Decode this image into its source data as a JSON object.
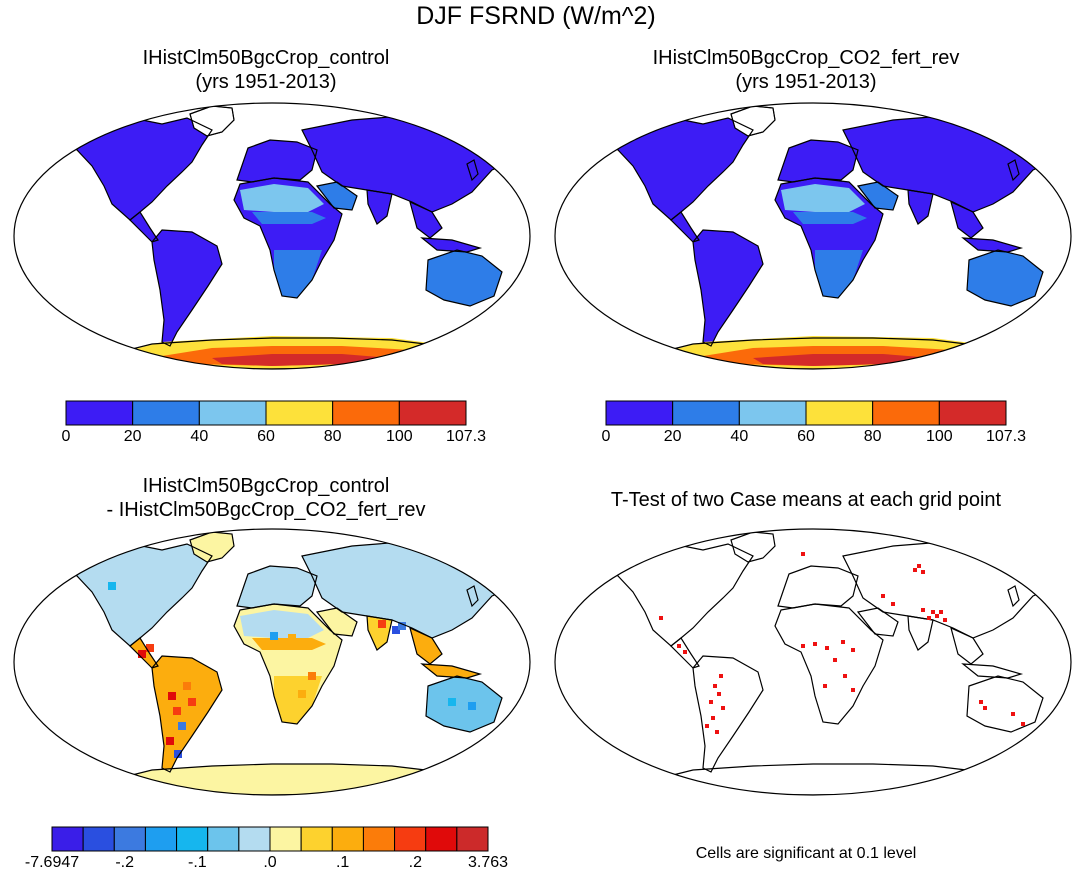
{
  "main_title": "DJF FSRND (W/m^2)",
  "panels": [
    {
      "title_line1": "IHistClm50BgcCrop_control",
      "title_line2": "(yrs 1951-2013)",
      "kind": "absolute"
    },
    {
      "title_line1": "IHistClm50BgcCrop_CO2_fert_rev",
      "title_line2": "(yrs 1951-2013)",
      "kind": "absolute"
    },
    {
      "title_line1": "IHistClm50BgcCrop_control",
      "title_line2": "- IHistClm50BgcCrop_CO2_fert_rev",
      "kind": "difference"
    },
    {
      "title_line1": "T-Test of two Case means at each grid point",
      "title_line2": "",
      "kind": "significance"
    }
  ],
  "colorbar_absolute": {
    "colors": [
      "#3d1cf5",
      "#2e7de8",
      "#7cc6ee",
      "#fde13a",
      "#fb6a0a",
      "#d42a29"
    ],
    "labels": [
      "0",
      "20",
      "40",
      "60",
      "80",
      "100",
      "107.3"
    ]
  },
  "colorbar_difference": {
    "colors": [
      "#3a1ee8",
      "#2a4fe0",
      "#3c7ae0",
      "#1e9ef0",
      "#16b6ee",
      "#6cc4ec",
      "#b4dcf0",
      "#fcf5a2",
      "#fdd22e",
      "#fcad0e",
      "#fb7c0a",
      "#f63c11",
      "#e00a0a",
      "#cc2a2a"
    ],
    "labels": [
      "-7.6947",
      "-.2",
      "-.1",
      ".0",
      ".1",
      ".2",
      "3.763"
    ]
  },
  "significance_note": "Cells are significant at 0.1 level",
  "significance_color": "#ee1111"
}
